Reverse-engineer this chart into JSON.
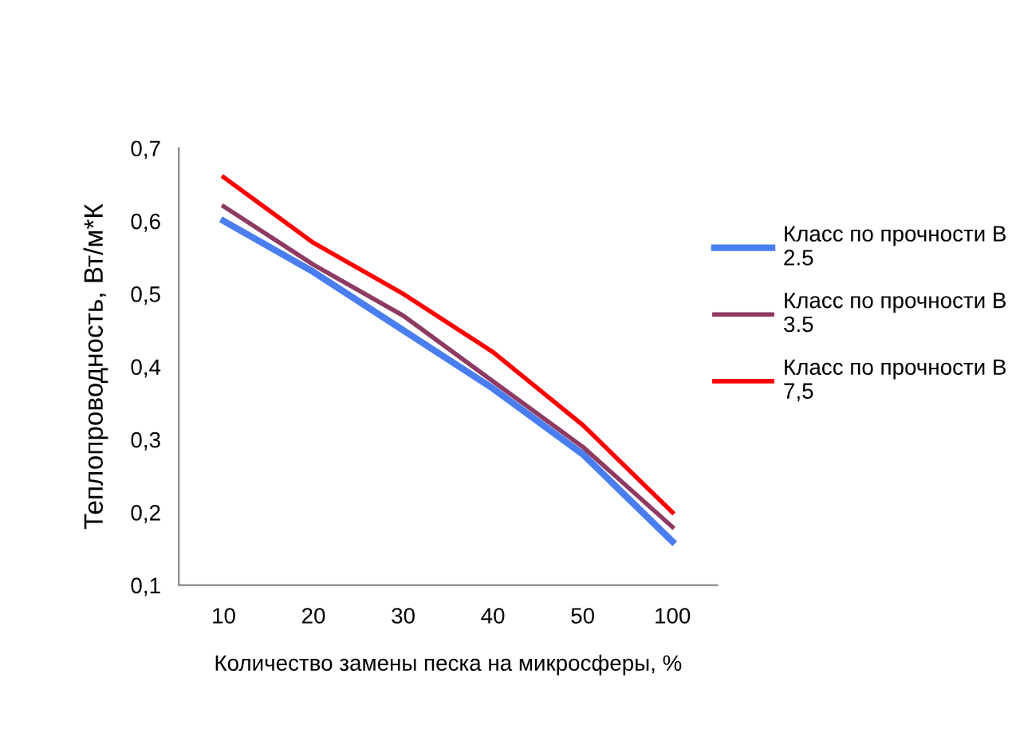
{
  "chart_data": {
    "type": "line",
    "xlabel": "Количество замены песка на микросферы, %",
    "ylabel": "Теплопроводность, Вт/м*К",
    "categories": [
      "10",
      "20",
      "30",
      "40",
      "50",
      "100"
    ],
    "series": [
      {
        "name": "Класс по прочности В 2.5",
        "color": "#4a7ef0",
        "values": [
          0.6,
          0.53,
          0.45,
          0.37,
          0.28,
          0.16
        ]
      },
      {
        "name": "Класс по прочности В 3.5",
        "color": "#8e3a62",
        "values": [
          0.62,
          0.54,
          0.47,
          0.38,
          0.29,
          0.18
        ]
      },
      {
        "name": "Класс по прочности В 7,5",
        "color": "#ff0000",
        "values": [
          0.66,
          0.57,
          0.5,
          0.42,
          0.32,
          0.2
        ]
      }
    ],
    "ylim": [
      0.1,
      0.7
    ],
    "yticks": [
      {
        "value": 0.1,
        "label": "0,1"
      },
      {
        "value": 0.2,
        "label": "0,2"
      },
      {
        "value": 0.3,
        "label": "0,3"
      },
      {
        "value": 0.4,
        "label": "0,4"
      },
      {
        "value": 0.5,
        "label": "0,5"
      },
      {
        "value": 0.6,
        "label": "0,6"
      },
      {
        "value": 0.7,
        "label": "0,7"
      }
    ],
    "grid": false,
    "legend": "right",
    "marker": "none",
    "line_style": "solid"
  }
}
